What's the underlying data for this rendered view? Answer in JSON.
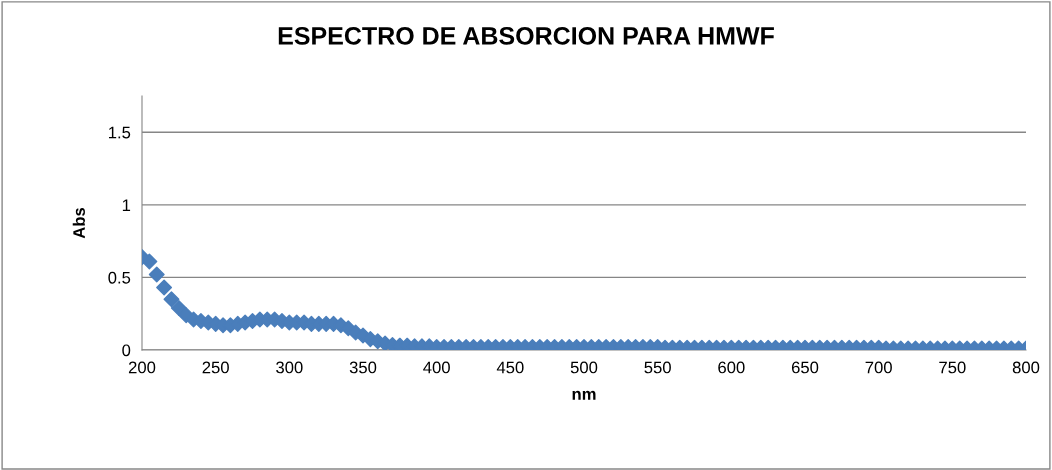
{
  "chart_data": {
    "type": "scatter",
    "title": "ESPECTRO DE ABSORCION PARA HMWF",
    "xlabel": "nm",
    "ylabel": "Abs",
    "xlim": [
      200,
      800
    ],
    "xticks": [
      200,
      250,
      300,
      350,
      400,
      450,
      500,
      550,
      600,
      650,
      700,
      750,
      800
    ],
    "ylim": [
      0,
      1.75
    ],
    "yticks": [
      0,
      0.5,
      1,
      1.5
    ],
    "grid": "y",
    "marker": "diamond",
    "series": [
      {
        "color": "#4a7ebb",
        "x": [
          200,
          205,
          210,
          215,
          220,
          225,
          230,
          235,
          240,
          245,
          250,
          255,
          260,
          265,
          270,
          275,
          280,
          285,
          290,
          295,
          300,
          305,
          310,
          315,
          320,
          325,
          330,
          335,
          340,
          345,
          350,
          355,
          360,
          365,
          370,
          375,
          380,
          385,
          390,
          395,
          400,
          405,
          410,
          415,
          420,
          425,
          430,
          435,
          440,
          445,
          450,
          455,
          460,
          465,
          470,
          475,
          480,
          485,
          490,
          495,
          500,
          505,
          510,
          515,
          520,
          525,
          530,
          535,
          540,
          545,
          550,
          555,
          560,
          565,
          570,
          575,
          580,
          585,
          590,
          595,
          600,
          605,
          610,
          615,
          620,
          625,
          630,
          635,
          640,
          645,
          650,
          655,
          660,
          665,
          670,
          675,
          680,
          685,
          690,
          695,
          700,
          705,
          710,
          715,
          720,
          725,
          730,
          735,
          740,
          745,
          750,
          755,
          760,
          765,
          770,
          775,
          780,
          785,
          790,
          795,
          800
        ],
        "values": [
          0.64,
          0.61,
          0.52,
          0.43,
          0.35,
          0.29,
          0.24,
          0.21,
          0.2,
          0.19,
          0.18,
          0.17,
          0.17,
          0.18,
          0.19,
          0.2,
          0.21,
          0.21,
          0.21,
          0.2,
          0.19,
          0.19,
          0.19,
          0.18,
          0.18,
          0.18,
          0.18,
          0.17,
          0.15,
          0.12,
          0.1,
          0.075,
          0.06,
          0.045,
          0.035,
          0.03,
          0.03,
          0.025,
          0.025,
          0.025,
          0.02,
          0.02,
          0.02,
          0.02,
          0.02,
          0.02,
          0.02,
          0.02,
          0.02,
          0.02,
          0.02,
          0.02,
          0.02,
          0.02,
          0.02,
          0.02,
          0.02,
          0.02,
          0.02,
          0.02,
          0.02,
          0.02,
          0.02,
          0.02,
          0.02,
          0.02,
          0.02,
          0.02,
          0.02,
          0.02,
          0.02,
          0.015,
          0.015,
          0.015,
          0.015,
          0.015,
          0.015,
          0.015,
          0.015,
          0.015,
          0.015,
          0.015,
          0.015,
          0.015,
          0.015,
          0.015,
          0.015,
          0.015,
          0.015,
          0.015,
          0.015,
          0.015,
          0.015,
          0.015,
          0.015,
          0.015,
          0.015,
          0.015,
          0.015,
          0.015,
          0.015,
          0.01,
          0.01,
          0.01,
          0.01,
          0.01,
          0.01,
          0.01,
          0.01,
          0.01,
          0.01,
          0.01,
          0.01,
          0.01,
          0.01,
          0.01,
          0.01,
          0.01,
          0.01,
          0.01,
          0.01
        ]
      }
    ]
  }
}
